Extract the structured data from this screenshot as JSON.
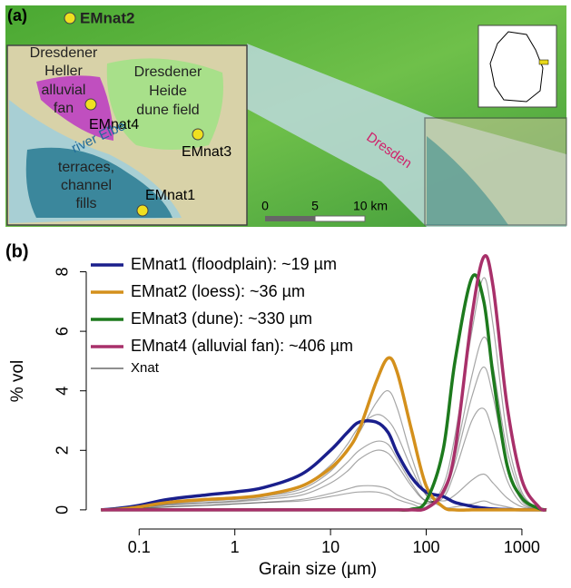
{
  "panel_a": {
    "label": "(a)",
    "em2": "EMnat2",
    "em4": "EMnat4",
    "em3": "EMnat3",
    "em1": "EMnat1",
    "heller": [
      "Dresdener",
      "Heller",
      "alluvial",
      "fan"
    ],
    "heide": [
      "Dresdener",
      "Heide",
      "dune field"
    ],
    "terraces": [
      "terraces,",
      "channel",
      "fills"
    ],
    "river": "river Elbe",
    "city": "Dresden",
    "scale": [
      "0",
      "5",
      "10 km"
    ]
  },
  "chart_data": {
    "type": "line",
    "panel_label": "(b)",
    "x_label": "Grain size (µm)",
    "y_label": "% vol",
    "log_x": true,
    "xlim": [
      0.028,
      2400
    ],
    "xticks": [
      0.1,
      1,
      10,
      100,
      1000
    ],
    "ylim": [
      -0.4,
      8.9
    ],
    "yticks": [
      0,
      2,
      4,
      6,
      8
    ],
    "x": [
      0.04,
      0.06,
      0.1,
      0.2,
      0.5,
      1,
      2,
      5,
      10,
      15,
      20,
      30,
      40,
      50,
      70,
      100,
      150,
      200,
      300,
      400,
      500,
      700,
      1000,
      1500,
      1800
    ],
    "series": [
      {
        "name": "EMnat1 (floodplain): ~19 µm",
        "color": "#1a1f8c",
        "values": [
          0,
          0.05,
          0.15,
          0.35,
          0.5,
          0.6,
          0.75,
          1.2,
          2.0,
          2.6,
          2.95,
          2.95,
          2.6,
          1.9,
          1.1,
          0.6,
          0.45,
          0.25,
          0.12,
          0.06,
          0.03,
          0.01,
          0,
          0,
          0
        ]
      },
      {
        "name": "EMnat2 (loess): ~36 µm",
        "color": "#d4901c",
        "values": [
          0,
          0.02,
          0.1,
          0.25,
          0.35,
          0.4,
          0.5,
          0.8,
          1.4,
          2.0,
          2.7,
          4.3,
          5.1,
          4.6,
          2.7,
          0.8,
          0.1,
          0,
          0,
          0,
          0,
          0,
          0,
          0,
          0
        ]
      },
      {
        "name": "EMnat3 (dune): ~330 µm",
        "color": "#1d7a1d",
        "values": [
          0,
          0,
          0,
          0,
          0,
          0,
          0,
          0,
          0,
          0,
          0,
          0,
          0,
          0,
          0.02,
          0.3,
          2.0,
          5.0,
          7.8,
          7.0,
          4.5,
          1.5,
          0.4,
          0.05,
          0
        ]
      },
      {
        "name": "EMnat4 (alluvial fan): ~406 µm",
        "color": "#a8306a",
        "values": [
          0,
          0,
          0,
          0,
          0,
          0,
          0,
          0,
          0,
          0,
          0,
          0,
          0,
          0,
          0,
          0.05,
          0.6,
          2.0,
          6.5,
          8.5,
          7.5,
          3.5,
          1.0,
          0.1,
          0
        ]
      },
      {
        "name": "Xnat",
        "color": "#000000",
        "values": [
          [
            0,
            0.03,
            0.1,
            0.25,
            0.35,
            0.4,
            0.5,
            0.8,
            1.5,
            2.2,
            2.8,
            3.2,
            3.0,
            2.5,
            1.4,
            0.5,
            0.3,
            0.5,
            1.0,
            1.2,
            0.9,
            0.4,
            0.1,
            0.01,
            0
          ],
          [
            0,
            0.01,
            0.05,
            0.1,
            0.15,
            0.2,
            0.25,
            0.35,
            0.55,
            0.7,
            0.8,
            0.8,
            0.7,
            0.5,
            0.3,
            0.2,
            0.6,
            1.8,
            4.5,
            5.8,
            4.8,
            2.0,
            0.5,
            0.05,
            0
          ],
          [
            0,
            0.02,
            0.08,
            0.18,
            0.25,
            0.3,
            0.4,
            0.6,
            1.1,
            1.6,
            2.0,
            2.3,
            2.2,
            1.7,
            0.9,
            0.3,
            0.4,
            1.3,
            3.0,
            3.4,
            2.6,
            1.0,
            0.2,
            0.02,
            0
          ],
          [
            0,
            0.02,
            0.08,
            0.2,
            0.3,
            0.35,
            0.45,
            0.7,
            1.3,
            2.0,
            2.6,
            3.6,
            4.0,
            3.4,
            1.8,
            0.5,
            0.1,
            0.1,
            0.2,
            0.3,
            0.2,
            0.1,
            0,
            0,
            0
          ],
          [
            0,
            0.01,
            0.04,
            0.1,
            0.15,
            0.2,
            0.25,
            0.3,
            0.45,
            0.55,
            0.6,
            0.6,
            0.5,
            0.35,
            0.2,
            0.1,
            0.8,
            2.5,
            6.0,
            7.8,
            6.2,
            2.5,
            0.6,
            0.05,
            0
          ],
          [
            0,
            0.02,
            0.06,
            0.15,
            0.22,
            0.27,
            0.35,
            0.5,
            0.9,
            1.3,
            1.7,
            2.0,
            1.9,
            1.5,
            0.8,
            0.3,
            0.5,
            1.6,
            3.8,
            4.8,
            3.8,
            1.5,
            0.3,
            0.03,
            0
          ]
        ]
      }
    ]
  }
}
